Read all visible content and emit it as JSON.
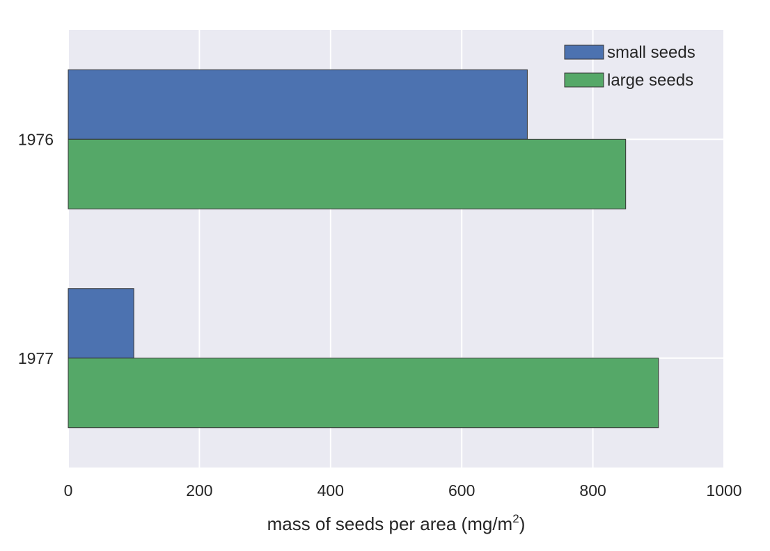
{
  "chart_data": {
    "type": "bar",
    "orientation": "horizontal",
    "categories": [
      "1976",
      "1977"
    ],
    "series": [
      {
        "name": "small seeds",
        "values": [
          700,
          100
        ],
        "color": "#4c72b0"
      },
      {
        "name": "large seeds",
        "values": [
          850,
          900
        ],
        "color": "#55a868"
      }
    ],
    "xlabel": "mass of seeds per area (mg/m",
    "xlabel_superscript": "2",
    "xlabel_suffix": ")",
    "ylabel": "",
    "xlim": [
      0,
      1000
    ],
    "x_ticks": [
      "0",
      "200",
      "400",
      "600",
      "800",
      "1000"
    ],
    "grid": true,
    "legend_position": "top-right",
    "style": {
      "plot_background": "#eaeaf2",
      "grid_color": "#ffffff",
      "edge_color": "#333333"
    }
  }
}
